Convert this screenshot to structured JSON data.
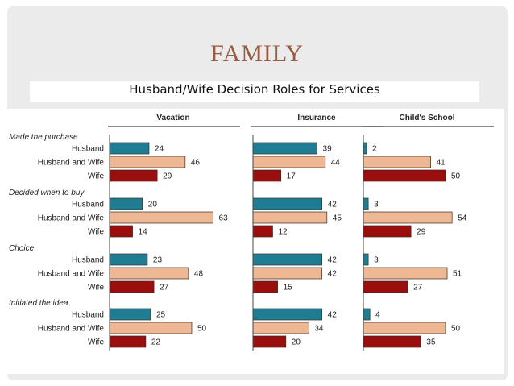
{
  "title": "FAMILY",
  "subtitle": "Husband/Wife Decision Roles for Services",
  "colors": {
    "husband": "#1f7d93",
    "husband_and_wife": "#efb894",
    "wife": "#9b0e0e",
    "title": "#9a5a3e"
  },
  "chart_data": {
    "type": "bar",
    "orientation": "horizontal",
    "panels": [
      "Vacation",
      "Insurance",
      "Child's School"
    ],
    "roles": [
      "Husband",
      "Husband and Wife",
      "Wife"
    ],
    "groups": [
      {
        "label": "Made the purchase",
        "values": {
          "Vacation": [
            24,
            46,
            29
          ],
          "Insurance": [
            39,
            44,
            17
          ],
          "Child's School": [
            2,
            41,
            50
          ]
        }
      },
      {
        "label": "Decided when to buy",
        "values": {
          "Vacation": [
            20,
            63,
            14
          ],
          "Insurance": [
            42,
            45,
            12
          ],
          "Child's School": [
            3,
            54,
            29
          ]
        }
      },
      {
        "label": "Choice",
        "values": {
          "Vacation": [
            23,
            48,
            27
          ],
          "Insurance": [
            42,
            42,
            15
          ],
          "Child's School": [
            3,
            51,
            27
          ]
        }
      },
      {
        "label": "Initiated the idea",
        "values": {
          "Vacation": [
            25,
            50,
            22
          ],
          "Insurance": [
            42,
            34,
            20
          ],
          "Child's School": [
            4,
            50,
            35
          ]
        }
      }
    ],
    "xlim": [
      0,
      100
    ],
    "grid": false,
    "legend": "none"
  }
}
